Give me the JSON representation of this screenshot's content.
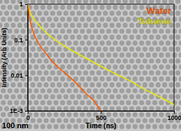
{
  "chart_data": {
    "type": "line",
    "x_label": "Time (ns)",
    "y_label": "Intensity (Arb Units)",
    "annotation": "100 nm",
    "log": "y",
    "legend": "upper right",
    "xlim": [
      0,
      1000
    ],
    "xticks": [
      0,
      500,
      1000
    ],
    "ylim": [
      0.001,
      1
    ],
    "yticks": [
      {
        "value": 0.001,
        "label": "1E-3"
      },
      0.01,
      0.1,
      1
    ],
    "series": [
      {
        "name": "Water",
        "color": "#ff5a00",
        "x": [
          0,
          10,
          20,
          30,
          50,
          75,
          100,
          150,
          200,
          250,
          300,
          350,
          400,
          450,
          500
        ],
        "values": [
          1,
          0.5,
          0.3,
          0.2,
          0.12,
          0.08,
          0.055,
          0.03,
          0.018,
          0.012,
          0.008,
          0.005,
          0.003,
          0.002,
          0.001
        ]
      },
      {
        "name": "Toluene",
        "color": "#e8e800",
        "x": [
          0,
          10,
          25,
          50,
          100,
          150,
          200,
          300,
          400,
          500,
          600,
          700,
          800,
          900,
          1000
        ],
        "values": [
          1,
          0.7,
          0.5,
          0.35,
          0.2,
          0.13,
          0.09,
          0.05,
          0.03,
          0.018,
          0.011,
          0.007,
          0.004,
          0.0025,
          0.0015
        ]
      }
    ]
  }
}
